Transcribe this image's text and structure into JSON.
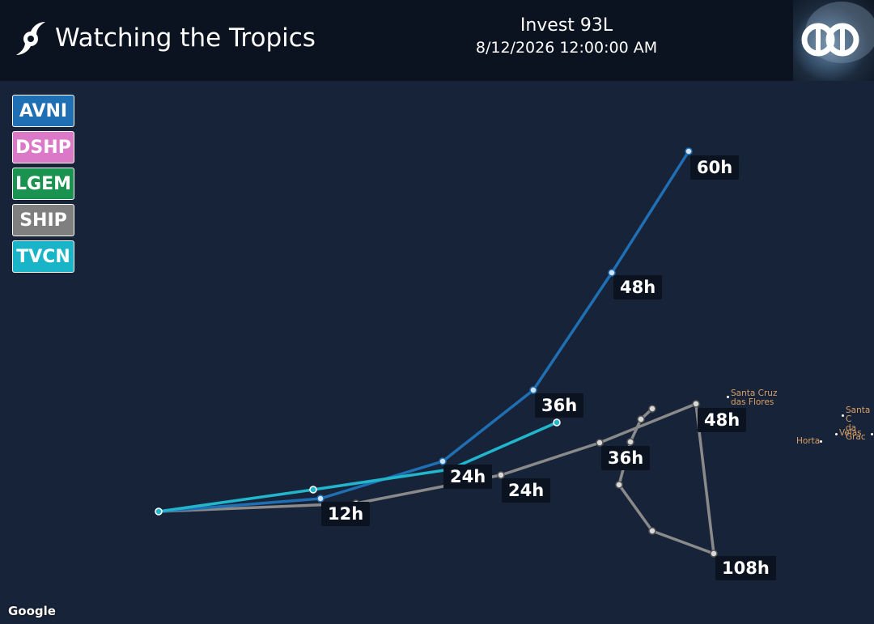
{
  "header": {
    "title": "Watching the Tropics",
    "storm_name": "Invest 93L",
    "storm_time": "8/12/2026 12:00:00 AM"
  },
  "legend": [
    {
      "label": "AVNI",
      "color": "#1f6fb4"
    },
    {
      "label": "DSHP",
      "color": "#dc78c8"
    },
    {
      "label": "LGEM",
      "color": "#1a9350"
    },
    {
      "label": "SHIP",
      "color": "#7f7f7f"
    },
    {
      "label": "TVCN",
      "color": "#1ab4c8"
    }
  ],
  "tracks": {
    "AVNI": {
      "color": "#1f6fb4"
    },
    "SHIP": {
      "color": "#8a8a8a"
    },
    "TVCN": {
      "color": "#22b6cc"
    }
  },
  "time_labels": {
    "avni_60": "60h",
    "avni_48": "48h",
    "avni_36": "36h",
    "avni_24": "24h",
    "ship_12": "12h",
    "ship_24": "24h",
    "ship_36": "36h",
    "ship_48": "48h",
    "ship_108": "108h"
  },
  "places": {
    "santa_cruz_line1": "Santa Cruz",
    "santa_cruz_line2": "das Flores",
    "santa_c_line1": "Santa C",
    "santa_c_line2": "da Grac",
    "horta": "Horta",
    "velas": "Velas"
  },
  "attribution": "Google"
}
